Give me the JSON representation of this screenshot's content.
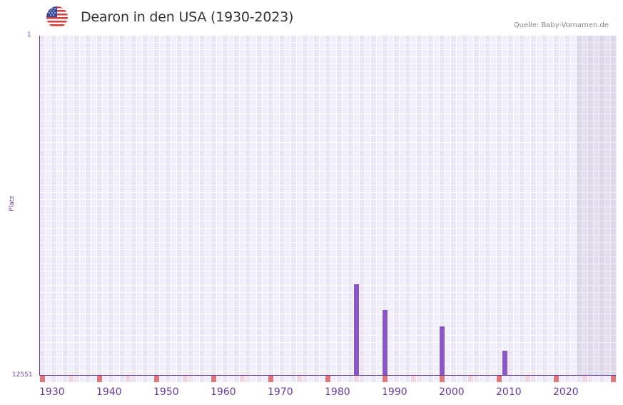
{
  "header": {
    "title": "Dearon in den USA (1930-2023)",
    "source": "Quelle: Baby-Vornamen.de",
    "flag_icon": "usa-flag-icon"
  },
  "colors": {
    "bar": "#8a55c8",
    "axis": "#6a3a9a",
    "decade_marker": "#e37479",
    "half_decade_marker": "#f3d5de",
    "cell_light": "#f2effc",
    "cell_dark": "#ebe6f8"
  },
  "axis": {
    "y_top_label": "1",
    "y_bottom_label": "12551",
    "y_title": "Platz",
    "x_ticks": [
      "1930",
      "1940",
      "1950",
      "1960",
      "1970",
      "1980",
      "1990",
      "2000",
      "2010",
      "2020"
    ]
  },
  "chart_data": {
    "type": "bar",
    "title": "Dearon in den USA (1930-2023)",
    "xlabel": "",
    "ylabel": "Platz",
    "ylim": [
      12551,
      1
    ],
    "y_inverted": true,
    "x_range": [
      1930,
      2030
    ],
    "future_shaded_from": 2024,
    "grid": true,
    "legend": null,
    "annotations": [
      "Quelle: Baby-Vornamen.de"
    ],
    "categories": [
      "1985",
      "1990",
      "2000",
      "2011"
    ],
    "values": [
      9196,
      10147,
      10754,
      11653
    ]
  }
}
